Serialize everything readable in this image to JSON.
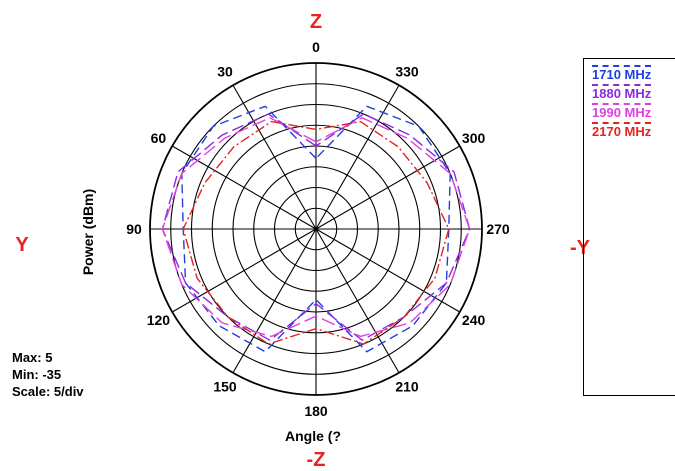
{
  "labels": {
    "top": "Z",
    "bottom": "-Z",
    "left": "Y",
    "right": "-Y",
    "ylabel": "Power  (dBm)",
    "xlabel": "Angle (?"
  },
  "stats": {
    "max": "Max: 5",
    "min": "Min: -35",
    "scale": "Scale: 5/div"
  },
  "legend": [
    {
      "label": "1710 MHz",
      "color": "#1f3fe0"
    },
    {
      "label": "1880 MHz",
      "color": "#8a2be2"
    },
    {
      "label": "1990 MHz",
      "color": "#e040e0"
    },
    {
      "label": "2170 MHz",
      "color": "#e8231f"
    }
  ],
  "chart_data": {
    "type": "polar-line",
    "r_min": -35,
    "r_max": 5,
    "r_step": 5,
    "angle_ticks": [
      0,
      30,
      60,
      90,
      120,
      150,
      180,
      210,
      240,
      270,
      300,
      330
    ],
    "angle_tick_labels": [
      "0",
      "30",
      "60",
      "90",
      "120",
      "150",
      "180",
      "210",
      "240",
      "270",
      "300",
      "330"
    ],
    "grid": true,
    "series": [
      {
        "name": "1710 MHz",
        "color": "#1f3fe0",
        "dash": "9,5",
        "angles": [
          0,
          22.5,
          45,
          67.5,
          90,
          112.5,
          135,
          157.5,
          180,
          202.5,
          225,
          247.5,
          270,
          292.5,
          315,
          337.5
        ],
        "values": [
          -18,
          -3,
          0,
          0,
          -3,
          -1,
          -2,
          -3,
          -18,
          -3,
          -2,
          -1,
          -3,
          0,
          0,
          -3
        ]
      },
      {
        "name": "1880 MHz",
        "color": "#8a2be2",
        "dash": "12,5",
        "angles": [
          0,
          22.5,
          45,
          67.5,
          90,
          112.5,
          135,
          157.5,
          180,
          202.5,
          225,
          247.5,
          270,
          292.5,
          315,
          337.5
        ],
        "values": [
          -15,
          -5,
          -3,
          1,
          2,
          -1,
          -5,
          -6,
          -17,
          -6,
          -5,
          -1,
          2,
          1,
          -3,
          -5
        ]
      },
      {
        "name": "1990 MHz",
        "color": "#e040e0",
        "dash": "14,5",
        "angles": [
          0,
          22.5,
          45,
          67.5,
          90,
          112.5,
          135,
          157.5,
          180,
          202.5,
          225,
          247.5,
          270,
          292.5,
          315,
          337.5
        ],
        "values": [
          -14,
          -6,
          -4,
          0,
          2,
          0,
          -3,
          -7,
          -14,
          -7,
          -3,
          0,
          2,
          0,
          -4,
          -6
        ]
      },
      {
        "name": "2170 MHz",
        "color": "#e8231f",
        "dash": "10,3,2,3",
        "angles": [
          0,
          22.5,
          45,
          67.5,
          90,
          112.5,
          135,
          157.5,
          180,
          202.5,
          225,
          247.5,
          270,
          292.5,
          315,
          337.5
        ],
        "values": [
          -11,
          -7,
          -7,
          -6,
          -3,
          -4,
          -5,
          -5,
          -11,
          -5,
          -5,
          -4,
          -3,
          -6,
          -7,
          -7
        ]
      }
    ]
  }
}
